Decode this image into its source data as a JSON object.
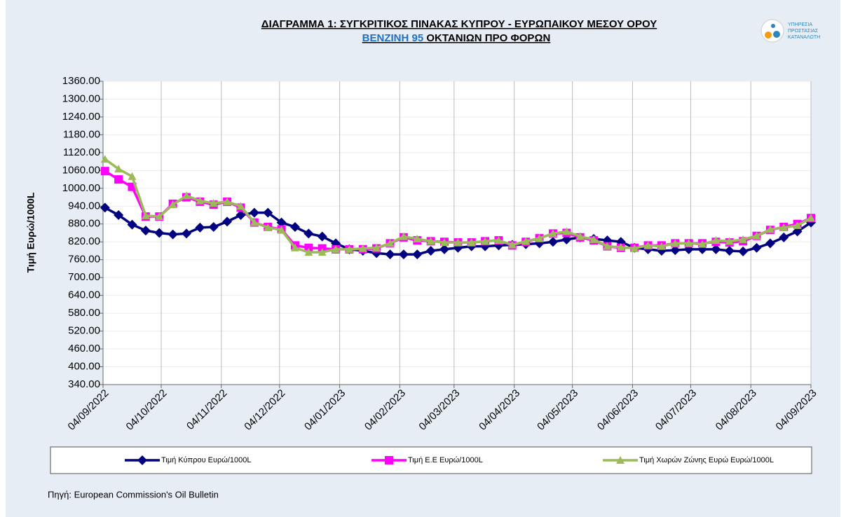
{
  "chart_data": {
    "type": "line",
    "title": "ΔΙΑΓΡΑΜΜΑ 1: ΣΥΓΚΡΙΤΙΚΟΣ ΠΙΝΑΚΑΣ ΚΥΠΡΟΥ - ΕΥΡΩΠΑΙΚΟΥ ΜΕΣΟΥ ΟΡΟΥ",
    "subtitle": [
      "ΒΕΝΖΙΝΗ 95",
      "ΟΚΤΑΝΙΩΝ ΠΡΟ ΦΟΡΩΝ"
    ],
    "logo_text": [
      "ΥΠΗΡΕΣΙΑ",
      "ΠΡΟΣΤΑΣΙΑΣ",
      "ΚΑΤΑΝΑΛΩΤΗ"
    ],
    "y_label": "Τιμή Ευρώ/1000L",
    "source": "Πηγή: European Commission's Oil Bulletin",
    "x": [
      "2022-09-05",
      "2022-09-12",
      "2022-09-19",
      "2022-09-26",
      "2022-10-03",
      "2022-10-10",
      "2022-10-17",
      "2022-10-24",
      "2022-10-31",
      "2022-11-07",
      "2022-11-14",
      "2022-11-21",
      "2022-11-28",
      "2022-12-05",
      "2022-12-12",
      "2022-12-19",
      "2022-12-26",
      "2023-01-02",
      "2023-01-09",
      "2023-01-16",
      "2023-01-23",
      "2023-01-30",
      "2023-02-06",
      "2023-02-13",
      "2023-02-20",
      "2023-02-27",
      "2023-03-06",
      "2023-03-13",
      "2023-03-20",
      "2023-03-27",
      "2023-04-03",
      "2023-04-10",
      "2023-04-17",
      "2023-04-24",
      "2023-05-01",
      "2023-05-08",
      "2023-05-15",
      "2023-05-22",
      "2023-05-29",
      "2023-06-05",
      "2023-06-12",
      "2023-06-19",
      "2023-06-26",
      "2023-07-03",
      "2023-07-10",
      "2023-07-17",
      "2023-07-24",
      "2023-07-31",
      "2023-08-07",
      "2023-08-14",
      "2023-08-21",
      "2023-08-28",
      "2023-09-04"
    ],
    "xlim": [
      "2022-09-04",
      "2023-09-04"
    ],
    "xticks": [
      {
        "value": "2022-09-04",
        "label": "04/09/2022"
      },
      {
        "value": "2022-10-04",
        "label": "04/10/2022"
      },
      {
        "value": "2022-11-04",
        "label": "04/11/2022"
      },
      {
        "value": "2022-12-04",
        "label": "04/12/2022"
      },
      {
        "value": "2023-01-04",
        "label": "04/01/2023"
      },
      {
        "value": "2023-02-04",
        "label": "04/02/2023"
      },
      {
        "value": "2023-03-04",
        "label": "04/03/2023"
      },
      {
        "value": "2023-04-04",
        "label": "04/04/2023"
      },
      {
        "value": "2023-05-04",
        "label": "04/05/2023"
      },
      {
        "value": "2023-06-04",
        "label": "04/06/2023"
      },
      {
        "value": "2023-07-04",
        "label": "04/07/2023"
      },
      {
        "value": "2023-08-04",
        "label": "04/08/2023"
      },
      {
        "value": "2023-09-04",
        "label": "04/09/2023"
      }
    ],
    "ylim": [
      340,
      1360
    ],
    "yticks": [
      {
        "value": 340,
        "label": "340.00"
      },
      {
        "value": 400,
        "label": "400.00"
      },
      {
        "value": 460,
        "label": "460.00"
      },
      {
        "value": 520,
        "label": "520.00"
      },
      {
        "value": 580,
        "label": "580.00"
      },
      {
        "value": 640,
        "label": "640.00"
      },
      {
        "value": 700,
        "label": "700.00"
      },
      {
        "value": 760,
        "label": "760.00"
      },
      {
        "value": 820,
        "label": "820.00"
      },
      {
        "value": 880,
        "label": "880.00"
      },
      {
        "value": 940,
        "label": "940.00"
      },
      {
        "value": 1000,
        "label": "1000.00"
      },
      {
        "value": 1060,
        "label": "1060.00"
      },
      {
        "value": 1120,
        "label": "1120.00"
      },
      {
        "value": 1180,
        "label": "1180.00"
      },
      {
        "value": 1240,
        "label": "1240.00"
      },
      {
        "value": 1300,
        "label": "1300.00"
      },
      {
        "value": 1360,
        "label": "1360.00"
      }
    ],
    "grid": true,
    "series": [
      {
        "name": "Τιμή Κύπρου Ευρώ/1000L",
        "color": "#000080",
        "marker": "diamond",
        "values": [
          935,
          910,
          878,
          858,
          850,
          845,
          848,
          868,
          870,
          888,
          910,
          918,
          918,
          885,
          870,
          848,
          838,
          815,
          795,
          790,
          782,
          778,
          778,
          778,
          790,
          795,
          800,
          805,
          805,
          808,
          810,
          812,
          815,
          820,
          828,
          835,
          830,
          825,
          820,
          800,
          795,
          790,
          792,
          795,
          795,
          795,
          790,
          788,
          800,
          815,
          835,
          855,
          885
        ]
      },
      {
        "name": "Τιμή Ε.Ε Ευρώ/1000L",
        "color": "#ff00ff",
        "marker": "square",
        "values": [
          1058,
          1030,
          1005,
          905,
          905,
          948,
          970,
          955,
          945,
          955,
          935,
          885,
          870,
          862,
          808,
          800,
          798,
          795,
          795,
          795,
          798,
          815,
          835,
          825,
          822,
          820,
          818,
          818,
          822,
          825,
          808,
          820,
          832,
          848,
          850,
          835,
          825,
          805,
          800,
          800,
          808,
          808,
          815,
          815,
          815,
          820,
          818,
          822,
          840,
          860,
          870,
          880,
          900
        ]
      },
      {
        "name": "Τιμή Χωρών Ζώνης Ευρώ Ευρώ/1000L",
        "color": "#9bbb59",
        "marker": "triangle",
        "values": [
          1098,
          1065,
          1040,
          908,
          905,
          945,
          975,
          958,
          950,
          955,
          940,
          885,
          868,
          860,
          800,
          785,
          785,
          795,
          795,
          798,
          800,
          815,
          838,
          830,
          822,
          818,
          818,
          818,
          822,
          825,
          810,
          822,
          832,
          848,
          855,
          838,
          828,
          805,
          802,
          798,
          808,
          805,
          815,
          815,
          812,
          825,
          822,
          828,
          840,
          862,
          868,
          875,
          900
        ]
      }
    ]
  }
}
